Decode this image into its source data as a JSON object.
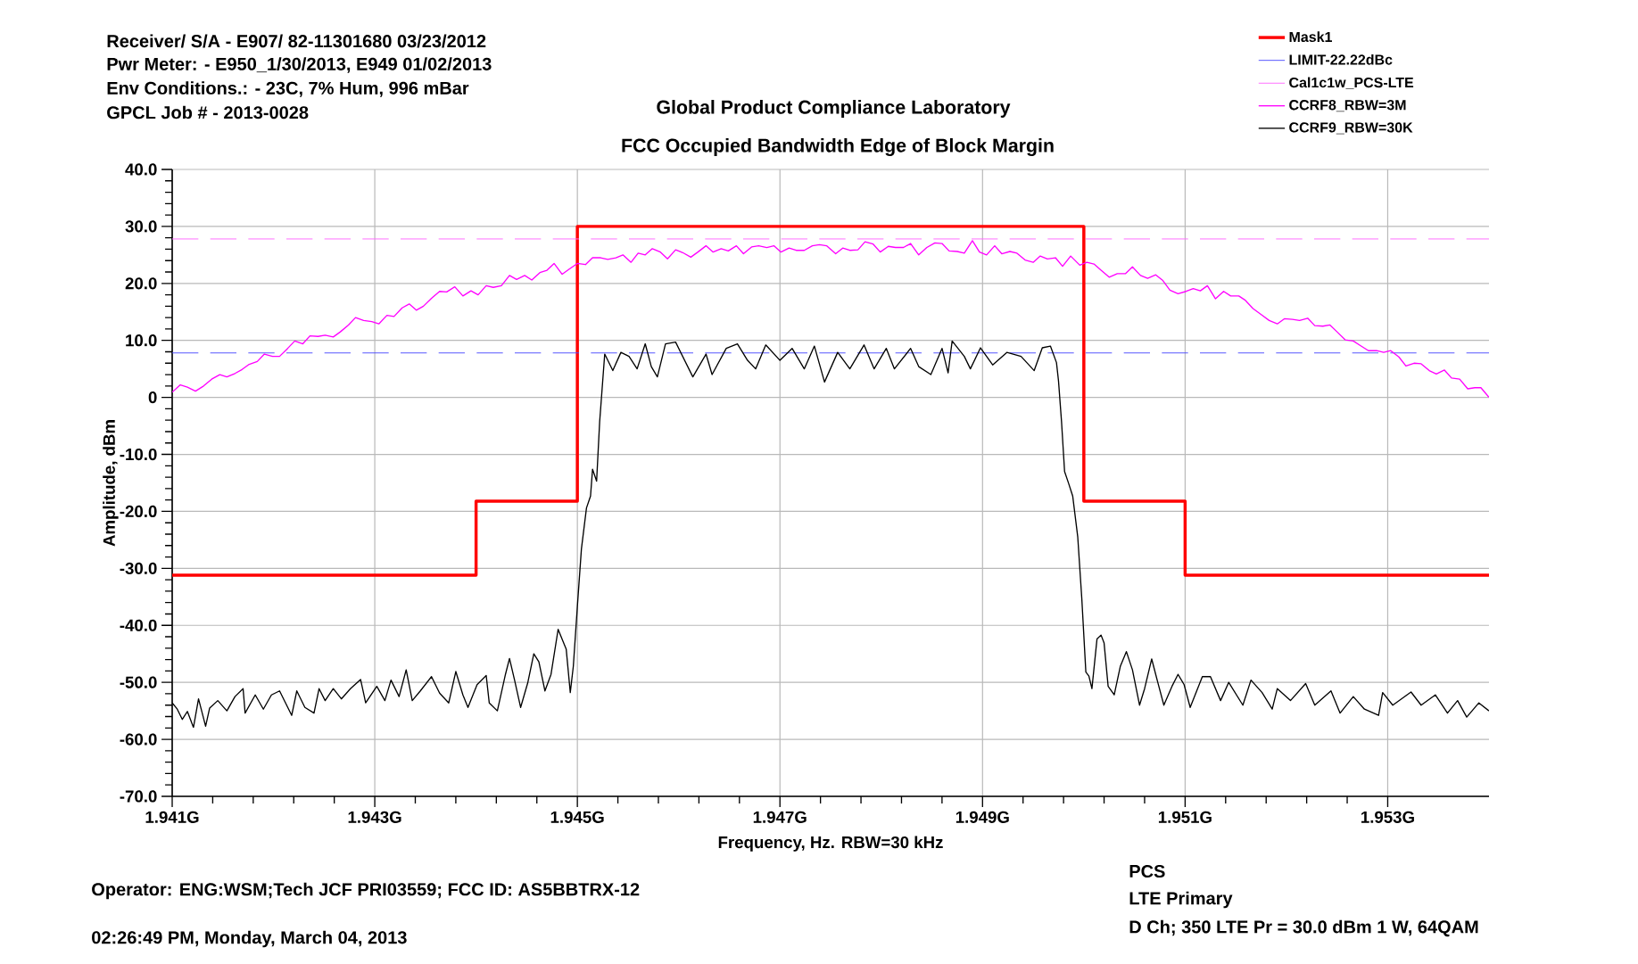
{
  "chart_data": {
    "type": "line",
    "title": "Global Product Compliance Laboratory",
    "subtitle": "FCC Occupied Bandwidth Edge of Block Margin",
    "xlabel": "Frequency, Hz.    RBW=30 kHz",
    "ylabel": "Amplitude, dBm",
    "annotations": [
      "Receiver/ S/A - E907/ 82-11301680 03/23/2012",
      "Pwr Meter: - E950_1/30/2013, E949 01/02/2013",
      "Env Conditions.: - 23C, 7% Hum,  996 mBar",
      "GPCL Job #  - 2013-0028",
      "Operator:  ENG:WSM;Tech JCF PRI03559;  FCC ID: AS5BBTRX-12",
      "02:26:49 PM, Monday, March 04, 2013",
      "PCS",
      "LTE    Primary",
      "D Ch; 350 LTE Pr = 30.0 dBm 1 W, 64QAM"
    ],
    "xlim": [
      1.941,
      1.954
    ],
    "ylim": [
      -70,
      40
    ],
    "xticks": [
      {
        "value": 1.941,
        "label": "1.941G"
      },
      {
        "value": 1.943,
        "label": "1.943G"
      },
      {
        "value": 1.945,
        "label": "1.945G"
      },
      {
        "value": 1.947,
        "label": "1.947G"
      },
      {
        "value": 1.949,
        "label": "1.949G"
      },
      {
        "value": 1.951,
        "label": "1.951G"
      },
      {
        "value": 1.953,
        "label": "1.953G"
      }
    ],
    "yticks": [
      {
        "value": -70,
        "label": "-70.0"
      },
      {
        "value": -60,
        "label": "-60.0"
      },
      {
        "value": -50,
        "label": "-50.0"
      },
      {
        "value": -40,
        "label": "-40.0"
      },
      {
        "value": -30,
        "label": "-30.0"
      },
      {
        "value": -20,
        "label": "-20.0"
      },
      {
        "value": -10,
        "label": "-10.0"
      },
      0,
      {
        "value": 10,
        "label": "10.0"
      },
      {
        "value": 20,
        "label": "20.0"
      },
      {
        "value": 30,
        "label": "30.0"
      },
      {
        "value": 40,
        "label": "40.0"
      }
    ],
    "grid": true,
    "legend": "top right",
    "ref_lines": [
      {
        "axis": "y",
        "value": 7.8,
        "label": "LIMIT-22.22dBc",
        "color": "#4a4aff",
        "line_style": "dashed"
      },
      {
        "axis": "y",
        "value": 27.8,
        "label": "Cal1c1w_PCS-LTE",
        "color": "#ff66ff",
        "line_style": "dashed"
      }
    ],
    "series": [
      {
        "name": "Mask1",
        "color": "#ff0000",
        "x": [
          1.941,
          1.944,
          1.944,
          1.945,
          1.945,
          1.95,
          1.95,
          1.951,
          1.951,
          1.954
        ],
        "values": [
          -31.2,
          -31.2,
          -18.2,
          -18.2,
          30,
          30,
          -18.2,
          -18.2,
          -31.2,
          -31.2
        ]
      },
      {
        "name": "CCRF8_RBW=3M",
        "color": "#ff00ff",
        "x": [
          1.941,
          1.94108,
          1.94115,
          1.94123,
          1.94131,
          1.94139,
          1.94147,
          1.94154,
          1.94162,
          1.94169,
          1.94176,
          1.94184,
          1.94191,
          1.94199,
          1.94206,
          1.94214,
          1.94221,
          1.94229,
          1.94236,
          1.94244,
          1.94251,
          1.94259,
          1.94266,
          1.94274,
          1.94281,
          1.94289,
          1.94297,
          1.94304,
          1.94312,
          1.94319,
          1.94327,
          1.94334,
          1.94341,
          1.94348,
          1.94356,
          1.94364,
          1.94371,
          1.94379,
          1.94387,
          1.94395,
          1.94402,
          1.9441,
          1.94417,
          1.94425,
          1.94433,
          1.9444,
          1.94448,
          1.94455,
          1.94463,
          1.9447,
          1.94477,
          1.94485,
          1.94492,
          1.945,
          1.94508,
          1.94515,
          1.94523,
          1.9453,
          1.94538,
          1.94545,
          1.94553,
          1.9456,
          1.94567,
          1.94574,
          1.94582,
          1.94589,
          1.94597,
          1.94604,
          1.94612,
          1.94619,
          1.94627,
          1.94634,
          1.94642,
          1.94649,
          1.94657,
          1.94664,
          1.94672,
          1.94679,
          1.94687,
          1.94694,
          1.94701,
          1.94709,
          1.94716,
          1.94724,
          1.94732,
          1.94739,
          1.94746,
          1.94755,
          1.94762,
          1.94769,
          1.94777,
          1.94784,
          1.94792,
          1.94799,
          1.94807,
          1.94814,
          1.94822,
          1.94829,
          1.94837,
          1.94845,
          1.94853,
          1.9486,
          1.94867,
          1.94875,
          1.94882,
          1.9489,
          1.94897,
          1.94904,
          1.94912,
          1.94919,
          1.94927,
          1.94934,
          1.94942,
          1.9495,
          1.94957,
          1.94964,
          1.94972,
          1.94979,
          1.94987,
          1.94996,
          1.95003,
          1.9501,
          1.95017,
          1.95025,
          1.95033,
          1.95041,
          1.95048,
          1.95056,
          1.95063,
          1.95071,
          1.95078,
          1.95085,
          1.95093,
          1.95101,
          1.95108,
          1.95115,
          1.95122,
          1.9513,
          1.95138,
          1.95145,
          1.95153,
          1.95159,
          1.95167,
          1.95176,
          1.95183,
          1.95191,
          1.95198,
          1.95206,
          1.95213,
          1.95221,
          1.95228,
          1.95236,
          1.95243,
          1.9525,
          1.95258,
          1.95266,
          1.95273,
          1.95281,
          1.95289,
          1.95296,
          1.95303,
          1.95311,
          1.95318,
          1.95326,
          1.95333,
          1.95341,
          1.95348,
          1.95356,
          1.95363,
          1.95371,
          1.95379,
          1.95386,
          1.95392,
          1.954
        ],
        "values": [
          0.9,
          2.2,
          1.8,
          1.1,
          2.0,
          3.2,
          4.0,
          3.6,
          4.2,
          4.9,
          5.8,
          6.3,
          7.6,
          7.2,
          7.2,
          8.6,
          9.9,
          9.4,
          10.8,
          10.7,
          10.9,
          10.6,
          11.5,
          12.7,
          14.0,
          13.5,
          13.3,
          12.9,
          14.4,
          14.2,
          15.7,
          16.4,
          15.3,
          16.0,
          17.4,
          18.6,
          18.5,
          19.4,
          17.8,
          18.7,
          18.0,
          19.6,
          19.3,
          19.6,
          21.4,
          20.7,
          21.4,
          20.6,
          21.9,
          22.3,
          23.5,
          21.6,
          22.5,
          23.5,
          23.3,
          24.5,
          24.5,
          24.2,
          24.5,
          25.0,
          23.7,
          25.3,
          25.0,
          26.1,
          25.5,
          24.3,
          25.9,
          25.4,
          24.6,
          25.5,
          26.6,
          25.5,
          26.1,
          25.7,
          26.6,
          25.2,
          26.4,
          26.6,
          26.3,
          26.6,
          25.5,
          26.2,
          25.8,
          25.8,
          26.6,
          26.8,
          26.6,
          25.2,
          26.2,
          25.8,
          25.9,
          27.3,
          26.9,
          25.5,
          26.5,
          26.3,
          26.3,
          27.0,
          25.0,
          26.3,
          27.1,
          27.0,
          25.7,
          25.6,
          25.3,
          27.5,
          25.5,
          25.0,
          26.6,
          25.2,
          25.6,
          25.3,
          24.1,
          23.7,
          24.8,
          24.3,
          24.5,
          23.0,
          24.8,
          23.2,
          23.7,
          23.4,
          22.3,
          21.1,
          21.7,
          21.7,
          22.9,
          21.4,
          20.9,
          21.5,
          20.5,
          18.8,
          18.2,
          18.6,
          19.1,
          18.7,
          19.6,
          17.3,
          18.6,
          17.8,
          17.8,
          17.1,
          15.6,
          14.4,
          13.5,
          12.9,
          13.8,
          13.7,
          13.5,
          13.9,
          12.6,
          12.5,
          12.7,
          11.5,
          10.1,
          9.9,
          9.1,
          8.2,
          8.2,
          7.9,
          8.2,
          7.1,
          5.5,
          6.0,
          5.9,
          4.7,
          4.1,
          4.8,
          3.4,
          3.2,
          1.5,
          1.7,
          1.7,
          0.0
        ]
      },
      {
        "name": "CCRF9_RBW=30K",
        "color": "#000000",
        "x": [
          1.941,
          1.94105,
          1.9411,
          1.94115,
          1.94121,
          1.94126,
          1.94133,
          1.94137,
          1.94145,
          1.94154,
          1.94162,
          1.9417,
          1.94172,
          1.94182,
          1.9419,
          1.94198,
          1.94206,
          1.94218,
          1.94223,
          1.94231,
          1.9424,
          1.94245,
          1.94251,
          1.94259,
          1.94267,
          1.94276,
          1.94286,
          1.94291,
          1.94302,
          1.9431,
          1.94316,
          1.94324,
          1.94331,
          1.94337,
          1.94345,
          1.94356,
          1.94364,
          1.94373,
          1.9438,
          1.94387,
          1.94392,
          1.94401,
          1.9441,
          1.94413,
          1.94421,
          1.94429,
          1.94433,
          1.94438,
          1.94444,
          1.94451,
          1.94457,
          1.94462,
          1.94468,
          1.94474,
          1.94481,
          1.94489,
          1.94493,
          1.94496,
          1.945,
          1.94504,
          1.94509,
          1.94513,
          1.94515,
          1.94519,
          1.94522,
          1.94527,
          1.94535,
          1.94543,
          1.94551,
          1.94559,
          1.94567,
          1.94573,
          1.94579,
          1.94587,
          1.94597,
          1.94614,
          1.94627,
          1.94633,
          1.94647,
          1.94658,
          1.94668,
          1.94676,
          1.94686,
          1.947,
          1.94712,
          1.94724,
          1.94734,
          1.94744,
          1.94757,
          1.94769,
          1.94783,
          1.94793,
          1.94805,
          1.94813,
          1.94829,
          1.94837,
          1.94849,
          1.9486,
          1.94866,
          1.9487,
          1.94882,
          1.94888,
          1.94898,
          1.9491,
          1.94924,
          1.94938,
          1.94951,
          1.94959,
          1.94967,
          1.94973,
          1.94975,
          1.94978,
          1.94981,
          1.94985,
          1.94989,
          1.94994,
          1.94998,
          1.95002,
          1.95005,
          1.95008,
          1.95013,
          1.95017,
          1.9502,
          1.95024,
          1.9503,
          1.95036,
          1.95042,
          1.95048,
          1.95055,
          1.9506,
          1.95067,
          1.95073,
          1.95079,
          1.95087,
          1.95093,
          1.95099,
          1.95105,
          1.95117,
          1.95125,
          1.95135,
          1.95143,
          1.95157,
          1.95165,
          1.95176,
          1.95186,
          1.95191,
          1.95204,
          1.95219,
          1.95228,
          1.95244,
          1.95253,
          1.95266,
          1.95277,
          1.95291,
          1.95295,
          1.95305,
          1.95323,
          1.95333,
          1.95347,
          1.95359,
          1.95369,
          1.95378,
          1.9539,
          1.954
        ],
        "values": [
          -53.6,
          -54.7,
          -56.5,
          -55.1,
          -57.9,
          -52.9,
          -57.7,
          -54.5,
          -53.2,
          -55.0,
          -52.5,
          -51.1,
          -55.4,
          -52.2,
          -54.7,
          -52.2,
          -51.5,
          -55.8,
          -51.5,
          -54.4,
          -55.4,
          -51.1,
          -53.2,
          -51.1,
          -52.9,
          -51.1,
          -49.5,
          -53.6,
          -50.7,
          -53.2,
          -49.6,
          -52.5,
          -47.8,
          -53.2,
          -51.5,
          -49.0,
          -51.9,
          -53.6,
          -48.1,
          -52.2,
          -54.4,
          -50.4,
          -48.8,
          -53.6,
          -55.0,
          -48.6,
          -45.8,
          -49.6,
          -54.4,
          -50.1,
          -45.0,
          -46.4,
          -51.5,
          -48.6,
          -40.7,
          -44.2,
          -51.8,
          -47.2,
          -36.7,
          -26.6,
          -19.4,
          -17.3,
          -12.6,
          -14.7,
          -4.3,
          7.6,
          4.7,
          7.9,
          7.2,
          5.0,
          9.4,
          5.4,
          3.6,
          9.4,
          9.7,
          3.6,
          7.6,
          4.0,
          8.6,
          9.4,
          6.5,
          5.0,
          9.2,
          6.5,
          8.6,
          5.0,
          9.0,
          2.7,
          7.9,
          5.0,
          9.2,
          5.0,
          8.6,
          5.0,
          8.6,
          5.4,
          4.0,
          8.6,
          4.3,
          9.9,
          7.2,
          5.0,
          8.7,
          5.7,
          7.9,
          7.2,
          4.7,
          8.7,
          9.0,
          6.1,
          2.9,
          -4.3,
          -13.0,
          -15.1,
          -17.3,
          -24.5,
          -35.3,
          -48.2,
          -48.9,
          -51.1,
          -42.4,
          -41.7,
          -43.1,
          -50.7,
          -52.2,
          -47.2,
          -44.6,
          -47.8,
          -54.0,
          -51.1,
          -45.9,
          -50.0,
          -54.0,
          -50.7,
          -48.6,
          -50.4,
          -54.4,
          -49.0,
          -49.0,
          -53.2,
          -50.0,
          -54.0,
          -49.6,
          -51.8,
          -54.7,
          -51.1,
          -53.2,
          -50.2,
          -54.0,
          -51.5,
          -55.4,
          -52.5,
          -54.7,
          -55.8,
          -51.8,
          -54.0,
          -51.7,
          -54.0,
          -52.2,
          -55.4,
          -53.2,
          -56.1,
          -53.6,
          -55.0
        ]
      }
    ]
  }
}
